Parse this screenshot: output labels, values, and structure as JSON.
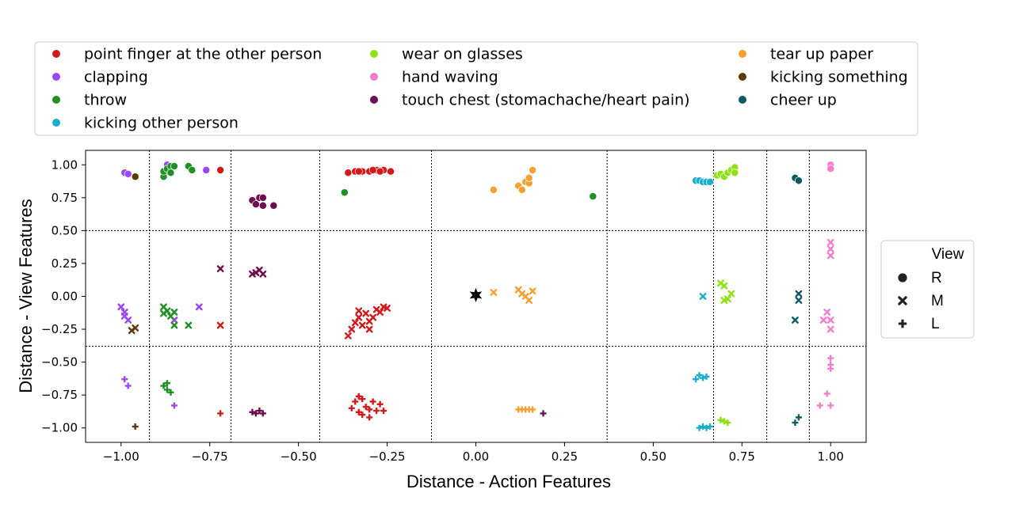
{
  "chart_data": {
    "type": "scatter",
    "xlabel": "Distance - Action Features",
    "ylabel": "Distance - View Features",
    "xlim": [
      -1.1,
      1.1
    ],
    "ylim": [
      -1.11,
      1.11
    ],
    "xticks": [
      -1.0,
      -0.75,
      -0.5,
      -0.25,
      0.0,
      0.25,
      0.5,
      0.75,
      1.0
    ],
    "xtick_labels": [
      "−1.00",
      "−0.75",
      "−0.50",
      "−0.25",
      "0.00",
      "0.25",
      "0.50",
      "0.75",
      "1.00"
    ],
    "yticks": [
      1.0,
      0.75,
      0.5,
      0.25,
      0.0,
      -0.25,
      -0.5,
      -0.75,
      -1.0
    ],
    "ytick_labels": [
      "1.00",
      "0.75",
      "0.50",
      "0.25",
      "0.00",
      "−0.25",
      "−0.50",
      "−0.75",
      "−1.00"
    ],
    "grid": false,
    "reference_lines": {
      "vertical": [
        -0.92,
        -0.69,
        -0.44,
        -0.125,
        0.37,
        0.67,
        0.82,
        0.94
      ],
      "horizontal": [
        0.5,
        -0.38
      ]
    },
    "anchor": {
      "x": 0.0,
      "y": 0.01,
      "marker": "star",
      "color": "#000000"
    },
    "legend_placement": "top",
    "legend": [
      {
        "name": "point finger at the other person",
        "color": "#d31a1a"
      },
      {
        "name": "clapping",
        "color": "#9b47f3"
      },
      {
        "name": "throw",
        "color": "#1f8f26"
      },
      {
        "name": "kicking other person",
        "color": "#1aaecd"
      },
      {
        "name": "wear on glasses",
        "color": "#8fe014"
      },
      {
        "name": "hand waving",
        "color": "#f47ecb"
      },
      {
        "name": "touch chest (stomachache/heart pain)",
        "color": "#6e0e4f"
      },
      {
        "name": "tear up paper",
        "color": "#f5a030"
      },
      {
        "name": "kicking something",
        "color": "#5b3a0a"
      },
      {
        "name": "cheer up",
        "color": "#0f5a5e"
      }
    ],
    "view_legend": {
      "title": "View",
      "items": [
        {
          "label": "R",
          "marker": "circle"
        },
        {
          "label": "M",
          "marker": "x"
        },
        {
          "label": "L",
          "marker": "plus"
        }
      ]
    },
    "series": [
      {
        "name": "point finger at the other person",
        "color": "#d31a1a",
        "R": [
          [
            -0.72,
            0.96
          ],
          [
            -0.36,
            0.94
          ],
          [
            -0.34,
            0.95
          ],
          [
            -0.32,
            0.95
          ],
          [
            -0.3,
            0.95
          ],
          [
            -0.28,
            0.96
          ],
          [
            -0.26,
            0.96
          ],
          [
            -0.24,
            0.95
          ],
          [
            -0.33,
            0.95
          ],
          [
            -0.29,
            0.96
          ],
          [
            -0.27,
            0.95
          ]
        ],
        "M": [
          [
            -0.72,
            -0.22
          ],
          [
            -0.36,
            -0.3
          ],
          [
            -0.34,
            -0.2
          ],
          [
            -0.33,
            -0.16
          ],
          [
            -0.32,
            -0.22
          ],
          [
            -0.31,
            -0.13
          ],
          [
            -0.3,
            -0.19
          ],
          [
            -0.29,
            -0.16
          ],
          [
            -0.28,
            -0.1
          ],
          [
            -0.27,
            -0.12
          ],
          [
            -0.26,
            -0.08
          ],
          [
            -0.25,
            -0.09
          ],
          [
            -0.35,
            -0.25
          ],
          [
            -0.3,
            -0.25
          ],
          [
            -0.33,
            -0.11
          ]
        ],
        "L": [
          [
            -0.72,
            -0.89
          ],
          [
            -0.35,
            -0.85
          ],
          [
            -0.34,
            -0.8
          ],
          [
            -0.33,
            -0.88
          ],
          [
            -0.32,
            -0.78
          ],
          [
            -0.31,
            -0.84
          ],
          [
            -0.3,
            -0.92
          ],
          [
            -0.29,
            -0.8
          ],
          [
            -0.28,
            -0.87
          ],
          [
            -0.27,
            -0.82
          ],
          [
            -0.26,
            -0.87
          ],
          [
            -0.33,
            -0.76
          ],
          [
            -0.3,
            -0.86
          ],
          [
            -0.32,
            -0.9
          ]
        ]
      },
      {
        "name": "clapping",
        "color": "#9b47f3",
        "R": [
          [
            -0.99,
            0.94
          ],
          [
            -0.98,
            0.93
          ],
          [
            -0.87,
            1.0
          ],
          [
            -0.76,
            0.96
          ]
        ],
        "M": [
          [
            -1.0,
            -0.08
          ],
          [
            -0.99,
            -0.12
          ],
          [
            -0.98,
            -0.18
          ],
          [
            -0.99,
            -0.15
          ],
          [
            -0.85,
            -0.18
          ],
          [
            -0.78,
            -0.08
          ]
        ],
        "L": [
          [
            -0.99,
            -0.63
          ],
          [
            -0.98,
            -0.68
          ],
          [
            -0.85,
            -0.83
          ]
        ]
      },
      {
        "name": "throw",
        "color": "#1f8f26",
        "R": [
          [
            -0.88,
            0.91
          ],
          [
            -0.88,
            0.95
          ],
          [
            -0.87,
            0.97
          ],
          [
            -0.86,
            0.99
          ],
          [
            -0.86,
            0.94
          ],
          [
            -0.85,
            0.99
          ],
          [
            -0.81,
            0.99
          ],
          [
            -0.8,
            0.96
          ],
          [
            -0.37,
            0.79
          ],
          [
            0.33,
            0.76
          ]
        ],
        "M": [
          [
            -0.88,
            -0.08
          ],
          [
            -0.88,
            -0.13
          ],
          [
            -0.87,
            -0.11
          ],
          [
            -0.86,
            -0.15
          ],
          [
            -0.85,
            -0.12
          ],
          [
            -0.85,
            -0.22
          ],
          [
            -0.81,
            -0.22
          ]
        ],
        "L": [
          [
            -0.88,
            -0.68
          ],
          [
            -0.87,
            -0.71
          ],
          [
            -0.86,
            -0.73
          ],
          [
            -0.87,
            -0.66
          ]
        ]
      },
      {
        "name": "kicking other person",
        "color": "#1aaecd",
        "R": [
          [
            0.62,
            0.88
          ],
          [
            0.63,
            0.88
          ],
          [
            0.64,
            0.87
          ],
          [
            0.65,
            0.87
          ],
          [
            0.66,
            0.87
          ]
        ],
        "M": [
          [
            0.64,
            0.0
          ]
        ],
        "L": [
          [
            0.63,
            -0.6
          ],
          [
            0.64,
            -0.62
          ],
          [
            0.62,
            -0.63
          ],
          [
            0.65,
            -0.61
          ],
          [
            0.63,
            -1.0
          ],
          [
            0.64,
            -0.99
          ],
          [
            0.65,
            -1.0
          ],
          [
            0.66,
            -0.99
          ]
        ]
      },
      {
        "name": "wear on glasses",
        "color": "#8fe014",
        "R": [
          [
            0.68,
            0.92
          ],
          [
            0.69,
            0.93
          ],
          [
            0.7,
            0.91
          ],
          [
            0.71,
            0.94
          ],
          [
            0.72,
            0.96
          ],
          [
            0.73,
            0.98
          ],
          [
            0.73,
            0.94
          ]
        ],
        "M": [
          [
            0.69,
            0.1
          ],
          [
            0.7,
            0.08
          ],
          [
            0.7,
            -0.03
          ],
          [
            0.71,
            -0.02
          ],
          [
            0.72,
            0.02
          ]
        ],
        "L": [
          [
            0.69,
            -0.94
          ],
          [
            0.7,
            -0.95
          ],
          [
            0.71,
            -0.96
          ]
        ]
      },
      {
        "name": "hand waving",
        "color": "#f47ecb",
        "R": [
          [
            1.0,
            1.0
          ],
          [
            1.0,
            0.97
          ]
        ],
        "M": [
          [
            1.0,
            0.41
          ],
          [
            1.0,
            0.36
          ],
          [
            1.0,
            0.31
          ],
          [
            0.98,
            -0.18
          ],
          [
            0.99,
            -0.12
          ],
          [
            1.0,
            -0.18
          ],
          [
            1.0,
            -0.25
          ]
        ],
        "L": [
          [
            1.0,
            -0.47
          ],
          [
            1.0,
            -0.52
          ],
          [
            1.0,
            -0.55
          ],
          [
            0.99,
            -0.74
          ],
          [
            0.97,
            -0.83
          ],
          [
            1.0,
            -0.83
          ]
        ]
      },
      {
        "name": "touch chest (stomachache/heart pain)",
        "color": "#6e0e4f",
        "R": [
          [
            -0.63,
            0.73
          ],
          [
            -0.62,
            0.7
          ],
          [
            -0.61,
            0.75
          ],
          [
            -0.6,
            0.69
          ],
          [
            -0.6,
            0.75
          ],
          [
            -0.57,
            0.69
          ]
        ],
        "M": [
          [
            -0.72,
            0.21
          ],
          [
            -0.63,
            0.17
          ],
          [
            -0.62,
            0.18
          ],
          [
            -0.61,
            0.2
          ],
          [
            -0.6,
            0.17
          ]
        ],
        "L": [
          [
            -0.63,
            -0.88
          ],
          [
            -0.62,
            -0.89
          ],
          [
            -0.61,
            -0.87
          ],
          [
            -0.6,
            -0.89
          ],
          [
            0.19,
            -0.89
          ]
        ]
      },
      {
        "name": "tear up paper",
        "color": "#f5a030",
        "R": [
          [
            0.05,
            0.81
          ],
          [
            0.12,
            0.84
          ],
          [
            0.13,
            0.81
          ],
          [
            0.14,
            0.87
          ],
          [
            0.15,
            0.86
          ],
          [
            0.15,
            0.9
          ],
          [
            0.16,
            0.96
          ]
        ],
        "M": [
          [
            0.05,
            0.03
          ],
          [
            0.12,
            0.05
          ],
          [
            0.13,
            0.02
          ],
          [
            0.14,
            0.0
          ],
          [
            0.15,
            -0.03
          ],
          [
            0.16,
            0.04
          ]
        ],
        "L": [
          [
            0.12,
            -0.86
          ],
          [
            0.13,
            -0.86
          ],
          [
            0.14,
            -0.86
          ],
          [
            0.15,
            -0.86
          ],
          [
            0.16,
            -0.86
          ]
        ]
      },
      {
        "name": "kicking something",
        "color": "#5b3a0a",
        "R": [
          [
            -0.96,
            0.91
          ]
        ],
        "M": [
          [
            -0.96,
            -0.24
          ],
          [
            -0.97,
            -0.26
          ]
        ],
        "L": [
          [
            -0.96,
            -0.99
          ]
        ]
      },
      {
        "name": "cheer up",
        "color": "#0f5a5e",
        "R": [
          [
            0.9,
            0.9
          ],
          [
            0.91,
            0.88
          ]
        ],
        "M": [
          [
            0.91,
            0.02
          ],
          [
            0.91,
            -0.03
          ],
          [
            0.9,
            -0.18
          ]
        ],
        "L": [
          [
            0.91,
            -0.92
          ],
          [
            0.9,
            -0.96
          ]
        ]
      }
    ]
  }
}
